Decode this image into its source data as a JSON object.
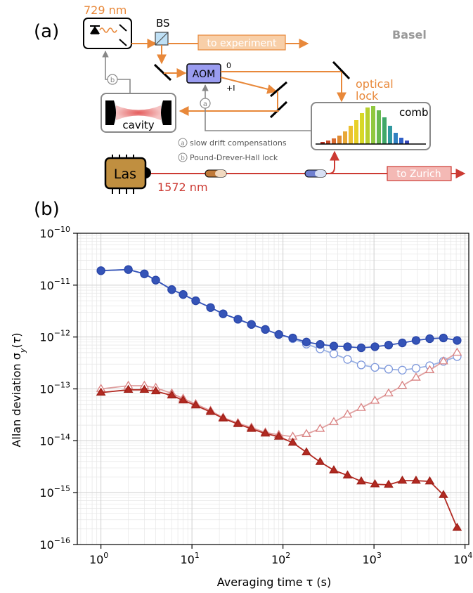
{
  "panel_a": {
    "label": "(a)",
    "laser_729": "729 nm",
    "bs_label": "BS",
    "lab_label": "Basel",
    "to_experiment": "to experiment",
    "aom_label": "AOM",
    "order_zero": "0",
    "order_plus": "+I",
    "optical_lock": [
      "optical",
      "lock"
    ],
    "comb_label": "comb",
    "cavity_label": "cavity",
    "marker_a": "a",
    "marker_b": "b",
    "legend_a": "slow drift compensations",
    "legend_b": "Pound-Drever-Hall lock",
    "las_label": "Las",
    "laser_1572": "1572 nm",
    "to_zurich": "to Zurich",
    "colors": {
      "orange": "#e8883a",
      "red": "#cc3a33",
      "blue_aom": "#9a9cf0",
      "gray": "#888888"
    },
    "comb_teeth_colors": [
      "#b03020",
      "#c84a28",
      "#d86a30",
      "#e08a30",
      "#e8a838",
      "#ecc030",
      "#e8d028",
      "#d8d828",
      "#b8d030",
      "#90c840",
      "#68b850",
      "#40a868",
      "#3098a0",
      "#3080c0",
      "#3060c8",
      "#3848b8"
    ]
  },
  "panel_b": {
    "label": "(b)"
  },
  "chart_data": {
    "type": "scatter",
    "xlabel": "Averaging time τ (s)",
    "ylabel": "Allan deviation σ_y(τ)",
    "x_scale": "log",
    "y_scale": "log",
    "xlim": [
      0.55,
      11000
    ],
    "ylim": [
      1e-16,
      1e-10
    ],
    "x_ticks": [
      {
        "v": 1,
        "m": "0"
      },
      {
        "v": 10,
        "m": "1"
      },
      {
        "v": 100,
        "m": "2"
      },
      {
        "v": 1000,
        "m": "3"
      },
      {
        "v": 10000,
        "m": "4"
      }
    ],
    "y_ticks": [
      {
        "v": 1e-16,
        "m": "−16"
      },
      {
        "v": 1e-15,
        "m": "−15"
      },
      {
        "v": 1e-14,
        "m": "−14"
      },
      {
        "v": 1e-13,
        "m": "−13"
      },
      {
        "v": 1e-12,
        "m": "−12"
      },
      {
        "v": 1e-11,
        "m": "−11"
      },
      {
        "v": 1e-10,
        "m": "−10"
      }
    ],
    "grid": true,
    "series": [
      {
        "marker": "circle-open",
        "color": "#9bb2e3",
        "stroke": "#7d97db",
        "x": [
          1,
          2,
          3,
          4,
          6,
          8,
          11,
          16,
          22,
          32,
          45,
          64,
          90,
          128,
          181,
          256,
          362,
          512,
          724,
          1024,
          1448,
          2048,
          2896,
          4096,
          5792,
          8192
        ],
        "y": [
          1.9e-11,
          2e-11,
          1.65e-11,
          1.25e-11,
          8.2e-12,
          6.6e-12,
          5e-12,
          3.7e-12,
          2.8e-12,
          2.2e-12,
          1.75e-12,
          1.4e-12,
          1.12e-12,
          9.3e-13,
          7.3e-13,
          5.9e-13,
          4.75e-13,
          3.7e-13,
          2.9e-13,
          2.6e-13,
          2.4e-13,
          2.3e-13,
          2.5e-13,
          2.8e-13,
          3.4e-13,
          4.2e-13
        ]
      },
      {
        "marker": "circle-filled",
        "color": "#3554b8",
        "stroke": "#2a46a8",
        "x": [
          1,
          2,
          3,
          4,
          6,
          8,
          11,
          16,
          22,
          32,
          45,
          64,
          90,
          128,
          181,
          256,
          362,
          512,
          724,
          1024,
          1448,
          2048,
          2896,
          4096,
          5792,
          8192
        ],
        "y": [
          1.9e-11,
          2e-11,
          1.65e-11,
          1.25e-11,
          8.2e-12,
          6.6e-12,
          5e-12,
          3.7e-12,
          2.8e-12,
          2.2e-12,
          1.75e-12,
          1.4e-12,
          1.12e-12,
          9.6e-13,
          8e-13,
          7.2e-13,
          6.7e-13,
          6.5e-13,
          6.2e-13,
          6.5e-13,
          7e-13,
          7.7e-13,
          8.6e-13,
          9.3e-13,
          9.6e-13,
          8.6e-13
        ]
      },
      {
        "marker": "triangle-open",
        "color": "#e0a0a0",
        "stroke": "#d98080",
        "x": [
          1,
          2,
          3,
          4,
          6,
          8,
          11,
          16,
          22,
          32,
          45,
          64,
          90,
          128,
          181,
          256,
          362,
          512,
          724,
          1024,
          1448,
          2048,
          2896,
          4096,
          5792,
          8192
        ],
        "y": [
          1e-13,
          1.15e-13,
          1.15e-13,
          1.05e-13,
          8.2e-14,
          6.5e-14,
          5.1e-14,
          3.8e-14,
          2.8e-14,
          2.2e-14,
          1.8e-14,
          1.45e-14,
          1.3e-14,
          1.2e-14,
          1.35e-14,
          1.7e-14,
          2.3e-14,
          3.2e-14,
          4.3e-14,
          5.9e-14,
          8.2e-14,
          1.15e-13,
          1.65e-13,
          2.3e-13,
          3.4e-13,
          5e-13
        ]
      },
      {
        "marker": "triangle-filled",
        "color": "#b22a22",
        "stroke": "#9e2018",
        "x": [
          1,
          2,
          3,
          4,
          6,
          8,
          11,
          16,
          22,
          32,
          45,
          64,
          90,
          128,
          181,
          256,
          362,
          512,
          724,
          1024,
          1448,
          2048,
          2896,
          4096,
          5792,
          8192
        ],
        "y": [
          8.5e-14,
          9.6e-14,
          9.6e-14,
          9e-14,
          7.5e-14,
          6e-14,
          4.8e-14,
          3.6e-14,
          2.7e-14,
          2.1e-14,
          1.7e-14,
          1.38e-14,
          1.2e-14,
          9.2e-15,
          6e-15,
          3.9e-15,
          2.7e-15,
          2.15e-15,
          1.65e-15,
          1.45e-15,
          1.42e-15,
          1.7e-15,
          1.7e-15,
          1.65e-15,
          9e-16,
          2.1e-16
        ]
      }
    ]
  }
}
